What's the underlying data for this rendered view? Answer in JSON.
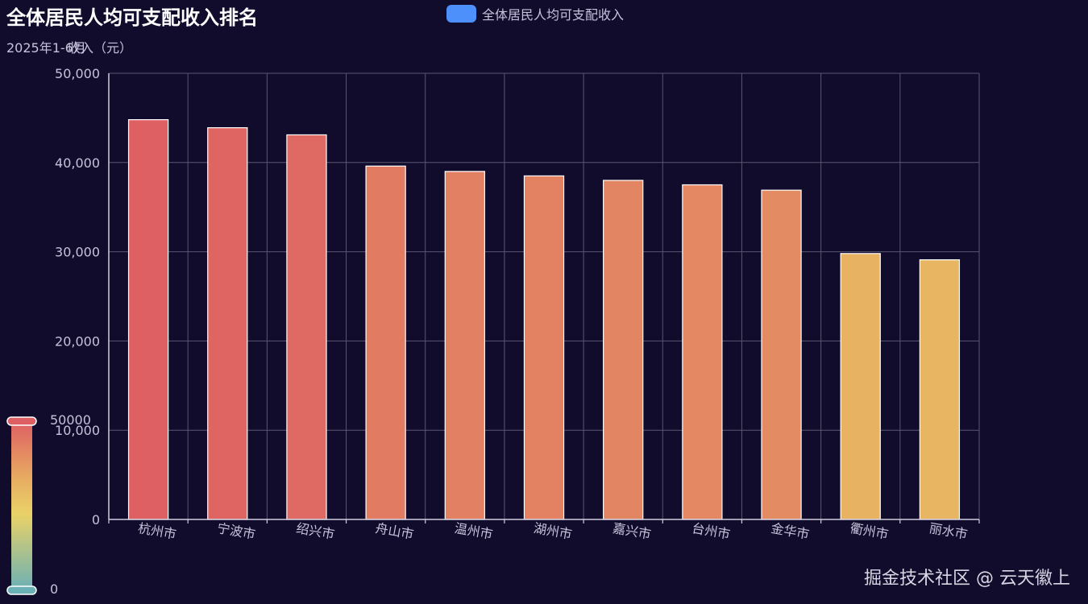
{
  "title": "全体居民人均可支配收入排名",
  "subtitle": "2025年1-6月",
  "legend": {
    "label": "全体居民人均可支配收入",
    "color": "#4d8ffb"
  },
  "watermark": "掘金技术社区 @ 云天徽上",
  "visual_map": {
    "max_label": "50000",
    "min_label": "0",
    "colors": [
      "#de5f63",
      "#e8ae62",
      "#e9d268",
      "#6bb0b5"
    ]
  },
  "chart_data": {
    "type": "bar",
    "title": "全体居民人均可支配收入排名",
    "subtitle": "2025年1-6月",
    "xlabel": "",
    "ylabel": "收入（元）",
    "ylim": [
      0,
      50000
    ],
    "yticks": [
      "0",
      "10,000",
      "20,000",
      "30,000",
      "40,000",
      "50,000"
    ],
    "grid": true,
    "legend_position": "top-center",
    "categories": [
      "杭州市",
      "宁波市",
      "绍兴市",
      "舟山市",
      "温州市",
      "湖州市",
      "嘉兴市",
      "台州市",
      "金华市",
      "衢州市",
      "丽水市"
    ],
    "series": [
      {
        "name": "全体居民人均可支配收入",
        "values": [
          44800,
          43900,
          43100,
          39600,
          39000,
          38500,
          38000,
          37500,
          36900,
          29800,
          29100
        ]
      }
    ]
  }
}
